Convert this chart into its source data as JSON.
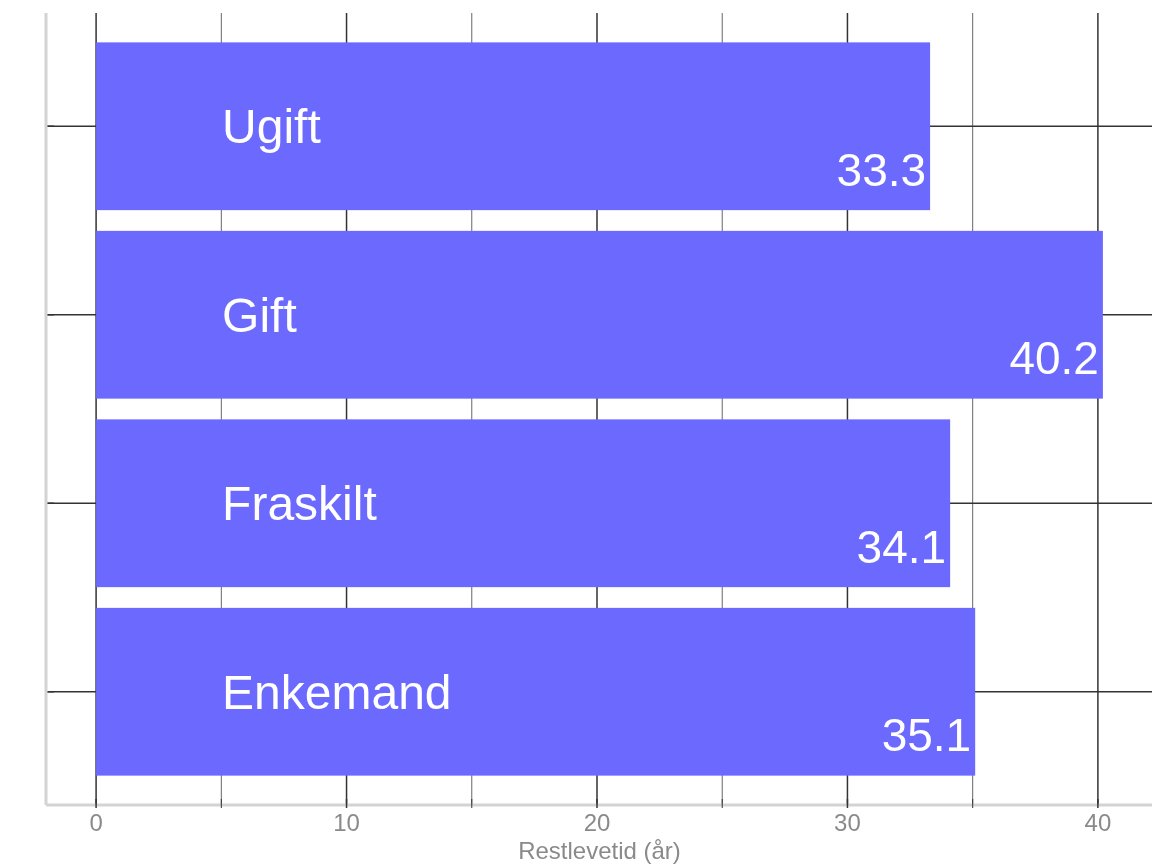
{
  "chart_data": {
    "type": "bar",
    "orientation": "horizontal",
    "categories": [
      "Ugift",
      "Gift",
      "Fraskilt",
      "Enkemand"
    ],
    "values": [
      33.3,
      40.2,
      34.1,
      35.1
    ],
    "color": "#6c69ff",
    "value_labels": [
      "33.3",
      "40.2",
      "34.1",
      "35.1"
    ],
    "xlabel": "Restlevetid (år)",
    "xlim": [
      -2,
      42.2
    ],
    "xticks": [
      0,
      {
        "value": 5,
        "label": null
      },
      10,
      {
        "value": 15,
        "label": null
      },
      20,
      {
        "value": 25,
        "label": null
      },
      30,
      {
        "value": 35,
        "label": null
      },
      40
    ],
    "grid": true
  }
}
